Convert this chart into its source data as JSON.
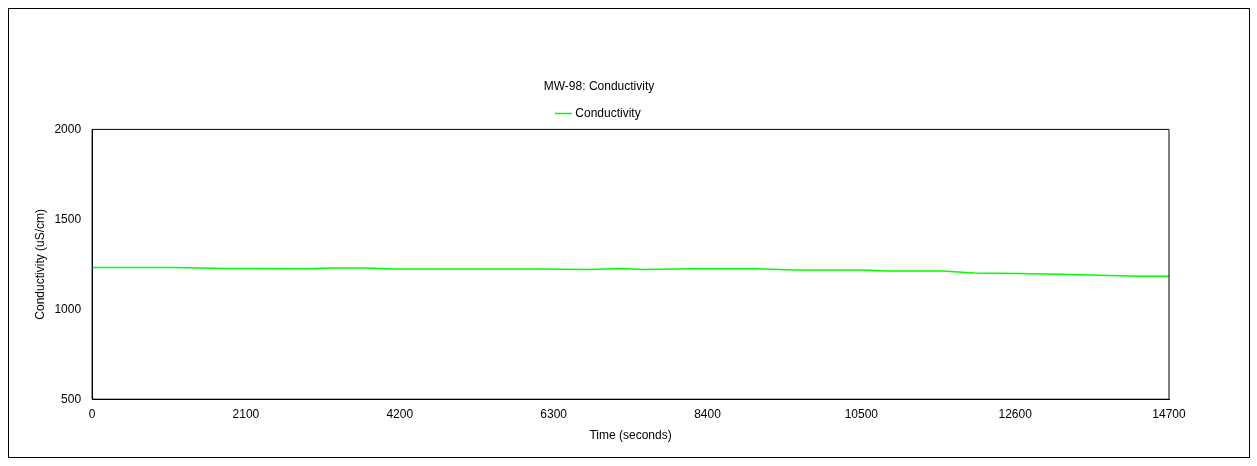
{
  "chart_data": {
    "type": "line",
    "title": "MW-98: Conductivity",
    "xlabel": "Time (seconds)",
    "ylabel": "Conductivity (uS/cm)",
    "x": [
      0,
      1132,
      1839,
      2929,
      3254,
      3721,
      4103,
      6084,
      6791,
      7215,
      7513,
      8192,
      9026,
      9607,
      10144,
      10526,
      10823,
      11601,
      12040,
      13214,
      14289,
      14700
    ],
    "series": [
      {
        "name": "Conductivity",
        "color": "#00ff00",
        "values": [
          1232,
          1232,
          1227,
          1225,
          1230,
          1230,
          1224,
          1224,
          1221,
          1226,
          1221,
          1225,
          1225,
          1219,
          1218,
          1219,
          1213,
          1213,
          1202,
          1195,
          1184,
          1184
        ]
      }
    ],
    "xlim": [
      0,
      14700
    ],
    "xticks": [
      0,
      2100,
      4200,
      6300,
      8400,
      10500,
      12600,
      14700
    ],
    "ylim": [
      500,
      2000
    ],
    "yticks": [
      500,
      1000,
      1500,
      2000
    ],
    "grid": false,
    "legend": "top",
    "marker": "none",
    "line_style": "solid"
  }
}
